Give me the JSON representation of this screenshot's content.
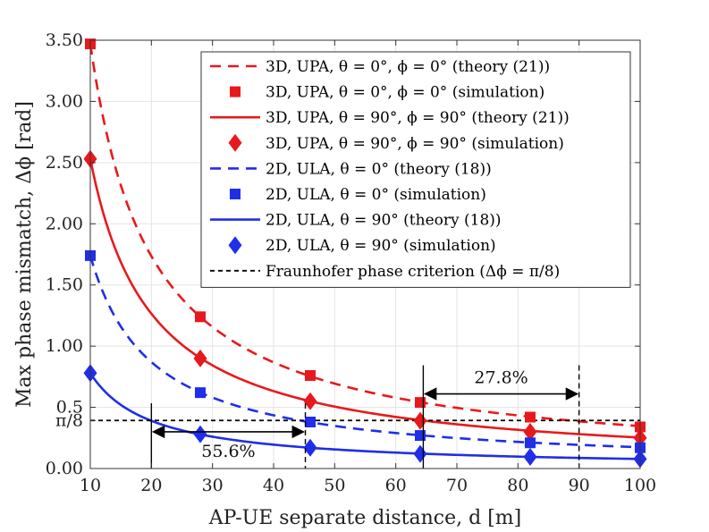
{
  "chart_data": {
    "type": "line",
    "xlabel": "AP-UE separate distance, d [m]",
    "ylabel": "Max phase mismatch, Δϕ [rad]",
    "xlim": [
      10,
      100
    ],
    "ylim": [
      0,
      3.5
    ],
    "grid": true,
    "legend_position": "top-right",
    "x_ticks": [
      "10",
      "20",
      "30",
      "40",
      "50",
      "60",
      "70",
      "80",
      "90",
      "100"
    ],
    "y_ticks": [
      "0.00",
      "0.5",
      "1.00",
      "1.50",
      "2.00",
      "2.50",
      "3.00",
      "3.50"
    ],
    "y_extra_tick": "π/8",
    "sim_x": [
      10,
      28,
      46,
      64,
      82,
      100
    ],
    "series": [
      {
        "name": "3D, UPA, θ = 0°, ϕ = 0° (theory (21))",
        "kind": "theory",
        "color": "#e8191c",
        "dash": true,
        "const": 34.7
      },
      {
        "name": "3D, UPA, θ = 0°, ϕ = 0° (simulation)",
        "kind": "sim",
        "color": "#e8191c",
        "marker": "square",
        "values": [
          3.47,
          1.24,
          0.76,
          0.54,
          0.42,
          0.34
        ]
      },
      {
        "name": "3D, UPA, θ = 90°, ϕ = 90° (theory (21))",
        "kind": "theory",
        "color": "#e8191c",
        "dash": false,
        "const": 25.3
      },
      {
        "name": "3D, UPA, θ = 90°, ϕ = 90° (simulation)",
        "kind": "sim",
        "color": "#e8191c",
        "marker": "diamond",
        "values": [
          2.53,
          0.9,
          0.55,
          0.39,
          0.3,
          0.25
        ]
      },
      {
        "name": "2D, ULA, θ = 0° (theory (18))",
        "kind": "theory",
        "color": "#1f2ee8",
        "dash": true,
        "const": 17.4
      },
      {
        "name": "2D, ULA, θ = 0° (simulation)",
        "kind": "sim",
        "color": "#1f2ee8",
        "marker": "square",
        "values": [
          1.74,
          0.62,
          0.38,
          0.27,
          0.21,
          0.17
        ]
      },
      {
        "name": "2D, ULA, θ = 90° (theory (18))",
        "kind": "theory",
        "color": "#1f2ee8",
        "dash": false,
        "const": 7.8
      },
      {
        "name": "2D, ULA, θ = 90° (simulation)",
        "kind": "sim",
        "color": "#1f2ee8",
        "marker": "diamond",
        "values": [
          0.78,
          0.28,
          0.17,
          0.12,
          0.095,
          0.078
        ]
      },
      {
        "name": "Fraunhofer phase criterion (Δϕ = π/8)",
        "kind": "hline",
        "color": "#000000",
        "dash": true,
        "value": 0.3927
      }
    ],
    "annotations": [
      {
        "text": "55.6%",
        "x1": 20,
        "x2": 45.2,
        "y": 0.3
      },
      {
        "text": "27.8%",
        "x1": 64.5,
        "x2": 90,
        "y": 0.61
      }
    ]
  }
}
